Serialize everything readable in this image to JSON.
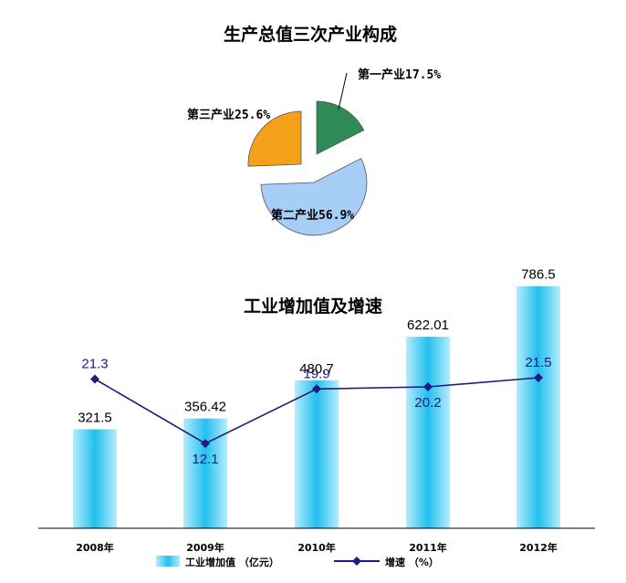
{
  "chart_data": [
    {
      "type": "pie",
      "title": "生产总值三次产业构成",
      "slices": [
        {
          "label": "第一产业17.5%",
          "value": 17.5,
          "color": "#2e8b57"
        },
        {
          "label": "第二产业56.9%",
          "value": 56.9,
          "color": "#a6cef6"
        },
        {
          "label": "第三产业25.6%",
          "value": 25.6,
          "color": "#f5a019"
        }
      ],
      "exploded": true
    },
    {
      "type": "bar",
      "title": "工业增加值及增速",
      "categories": [
        "2008年",
        "2009年",
        "2010年",
        "2011年",
        "2012年"
      ],
      "series": [
        {
          "name": "工业增加值 （亿元）",
          "type": "bar",
          "color": "#33c4f0",
          "values": [
            321.5,
            356.42,
            480.7,
            622.01,
            786.5
          ],
          "labels": [
            "321.5",
            "356.42",
            "480.7",
            "622.01",
            "786.5"
          ]
        },
        {
          "name": "增速 （%）",
          "type": "line",
          "color": "#1c1c80",
          "values": [
            21.3,
            12.1,
            19.9,
            20.2,
            21.5
          ],
          "labels": [
            "21.3",
            "12.1",
            "19.9",
            "20.2",
            "21.5"
          ]
        }
      ],
      "ylim": [
        0,
        800
      ],
      "y2lim": [
        0,
        40
      ],
      "legend_position": "bottom",
      "grid": false
    }
  ]
}
